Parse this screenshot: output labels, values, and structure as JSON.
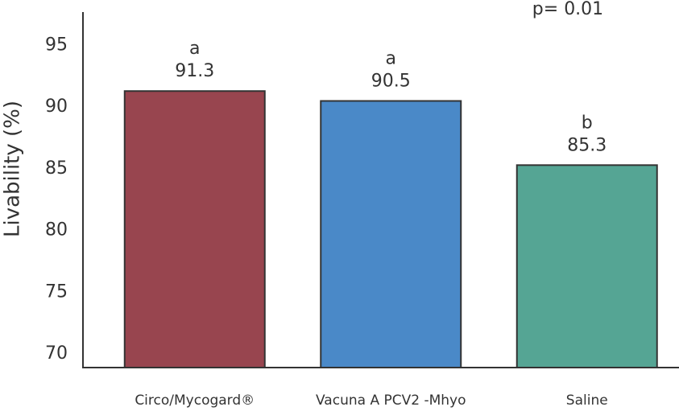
{
  "chart_data": {
    "type": "bar",
    "y_label": "Livability (%)",
    "annotation": "p= 0.01",
    "categories": [
      "Circo/Mycogard®",
      "Vacuna A PCV2 -Mhyo",
      "Saline"
    ],
    "values": [
      91.3,
      90.5,
      85.3
    ],
    "letters": [
      "a",
      "a",
      "b"
    ],
    "colors": [
      "#98454f",
      "#4a89c8",
      "#55a594"
    ],
    "ylim": [
      68.9,
      97.7
    ],
    "yticks": [
      70,
      75,
      80,
      85,
      90,
      95
    ],
    "grid": false
  }
}
